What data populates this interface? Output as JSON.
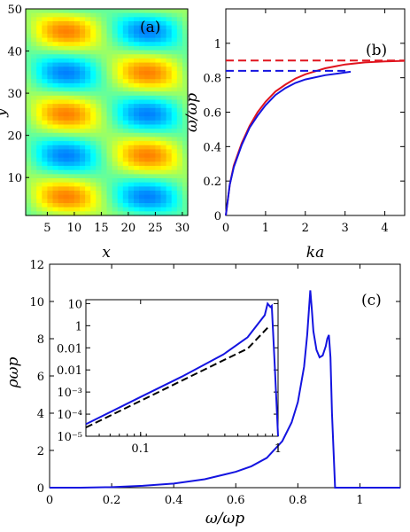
{
  "figure": {
    "panel_a": {
      "label": "(a)",
      "xlabel": "x",
      "ylabel": "y",
      "xticks": [
        "5",
        "10",
        "15",
        "20",
        "25",
        "30"
      ],
      "yticks": [
        "10",
        "20",
        "30",
        "40",
        "50"
      ]
    },
    "panel_b": {
      "label": "(b)",
      "xlabel": "ka",
      "ylabel": "ω/ωp",
      "xticks": [
        "0",
        "1",
        "2",
        "3",
        "4"
      ],
      "yticks": [
        "0",
        "0.2",
        "0.4",
        "0.6",
        "0.8",
        "1"
      ]
    },
    "panel_c": {
      "label": "(c)",
      "xlabel": "ω/ωp",
      "ylabel": "ρωp",
      "xticks": [
        "0",
        "0.2",
        "0.4",
        "0.6",
        "0.8",
        "1"
      ],
      "yticks": [
        "0",
        "2",
        "4",
        "6",
        "8",
        "10",
        "12"
      ],
      "inset": {
        "xticks": [
          "0.1",
          "1"
        ],
        "yticks": [
          "10",
          "1",
          "0.01",
          "0.01",
          "10⁻³",
          "10⁻⁴",
          "10⁻⁵"
        ]
      }
    }
  },
  "colors": {
    "red": "#e0141e",
    "blue": "#1414e0",
    "black": "#000000"
  },
  "chart_data": [
    {
      "type": "heatmap",
      "title": "",
      "xlabel": "x",
      "ylabel": "y",
      "xlim": [
        1,
        31
      ],
      "ylim": [
        1,
        50
      ],
      "grid": false,
      "pattern": "diagonally offset checkerboard of red maxima and blue minima",
      "colormap": "jet"
    },
    {
      "type": "line",
      "xlabel": "ka",
      "ylabel": "ω/ωp",
      "xlim": [
        0,
        4.5
      ],
      "ylim": [
        0,
        1.2
      ],
      "series": [
        {
          "color": "red",
          "style": "solid",
          "x": [
            0,
            0.1,
            0.2,
            0.4,
            0.6,
            0.8,
            1.0,
            1.25,
            1.5,
            1.75,
            2.0,
            2.5,
            3.0,
            3.5,
            4.0,
            4.5
          ],
          "y": [
            0,
            0.18,
            0.29,
            0.42,
            0.52,
            0.6,
            0.66,
            0.72,
            0.76,
            0.795,
            0.82,
            0.855,
            0.877,
            0.889,
            0.895,
            0.898
          ]
        },
        {
          "color": "blue",
          "style": "solid",
          "x": [
            0,
            0.1,
            0.2,
            0.4,
            0.6,
            0.8,
            1.0,
            1.25,
            1.5,
            1.75,
            2.0,
            2.5,
            3.0,
            3.14
          ],
          "y": [
            0,
            0.18,
            0.28,
            0.41,
            0.51,
            0.58,
            0.64,
            0.7,
            0.74,
            0.77,
            0.79,
            0.815,
            0.83,
            0.835
          ]
        },
        {
          "color": "red",
          "style": "dashed",
          "x": [
            0,
            4.5
          ],
          "y": [
            0.9,
            0.9
          ]
        },
        {
          "color": "blue",
          "style": "dashed",
          "x": [
            0,
            3.1
          ],
          "y": [
            0.84,
            0.84
          ]
        }
      ]
    },
    {
      "type": "line",
      "xlabel": "ω/ωp",
      "ylabel": "ρωp",
      "xlim": [
        0,
        1.13
      ],
      "ylim": [
        0,
        12
      ],
      "series": [
        {
          "color": "blue",
          "style": "solid",
          "x": [
            0,
            0.1,
            0.2,
            0.3,
            0.4,
            0.5,
            0.6,
            0.65,
            0.7,
            0.75,
            0.78,
            0.8,
            0.82,
            0.83,
            0.84,
            0.845,
            0.85,
            0.86,
            0.87,
            0.88,
            0.89,
            0.895,
            0.9,
            0.905,
            0.91,
            0.92,
            1.13
          ],
          "y": [
            0,
            0.002,
            0.03,
            0.1,
            0.22,
            0.45,
            0.85,
            1.15,
            1.6,
            2.5,
            3.5,
            4.6,
            6.5,
            8.2,
            10.6,
            9.6,
            8.4,
            7.4,
            7.0,
            7.1,
            7.6,
            8.0,
            8.2,
            7.0,
            4.0,
            0,
            0
          ]
        }
      ],
      "inset": {
        "xscale": "log",
        "yscale": "log",
        "xlim": [
          0.04,
          1.0
        ],
        "ylim": [
          1e-05,
          15
        ],
        "series": [
          {
            "color": "blue",
            "style": "solid",
            "x": [
              0.04,
              0.1,
              0.2,
              0.4,
              0.6,
              0.8,
              0.84,
              0.88,
              0.9,
              0.92,
              0.95,
              1.0
            ],
            "y": [
              3.5e-05,
              0.0006,
              0.005,
              0.05,
              0.3,
              3,
              10,
              7,
              8,
              0.5,
              0.01,
              1e-05
            ]
          },
          {
            "color": "black",
            "style": "dashed",
            "x": [
              0.04,
              0.1,
              0.2,
              0.4,
              0.6,
              0.84
            ],
            "y": [
              2.5e-05,
              0.0004,
              0.0033,
              0.027,
              0.092,
              0.8
            ]
          }
        ]
      }
    }
  ]
}
